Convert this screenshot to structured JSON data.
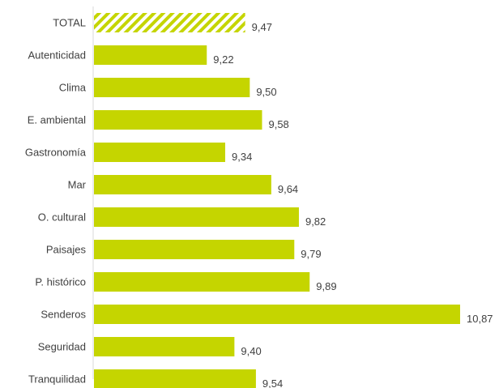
{
  "chart_data": {
    "type": "bar",
    "orientation": "horizontal",
    "categories": [
      "TOTAL",
      "Autenticidad",
      "Clima",
      "E. ambiental",
      "Gastronomía",
      "Mar",
      "O. cultural",
      "Paisajes",
      "P. histórico",
      "Senderos",
      "Seguridad",
      "Tranquilidad"
    ],
    "values": [
      9.47,
      9.22,
      9.5,
      9.58,
      9.34,
      9.64,
      9.82,
      9.79,
      9.89,
      10.87,
      9.4,
      9.54
    ],
    "value_labels": [
      "9,47",
      "9,22",
      "9,50",
      "9,58",
      "9,34",
      "9,64",
      "9,82",
      "9,79",
      "9,89",
      "10,87",
      "9,40",
      "9,54"
    ],
    "highlight": {
      "category": "TOTAL",
      "pattern": "diagonal-hatch"
    },
    "xlim": [
      8.48,
      10.87
    ],
    "grid": false,
    "legend": "none",
    "colors": {
      "bar": "#c5d500",
      "text": "#404040",
      "axis": "#d9d9d9"
    }
  }
}
